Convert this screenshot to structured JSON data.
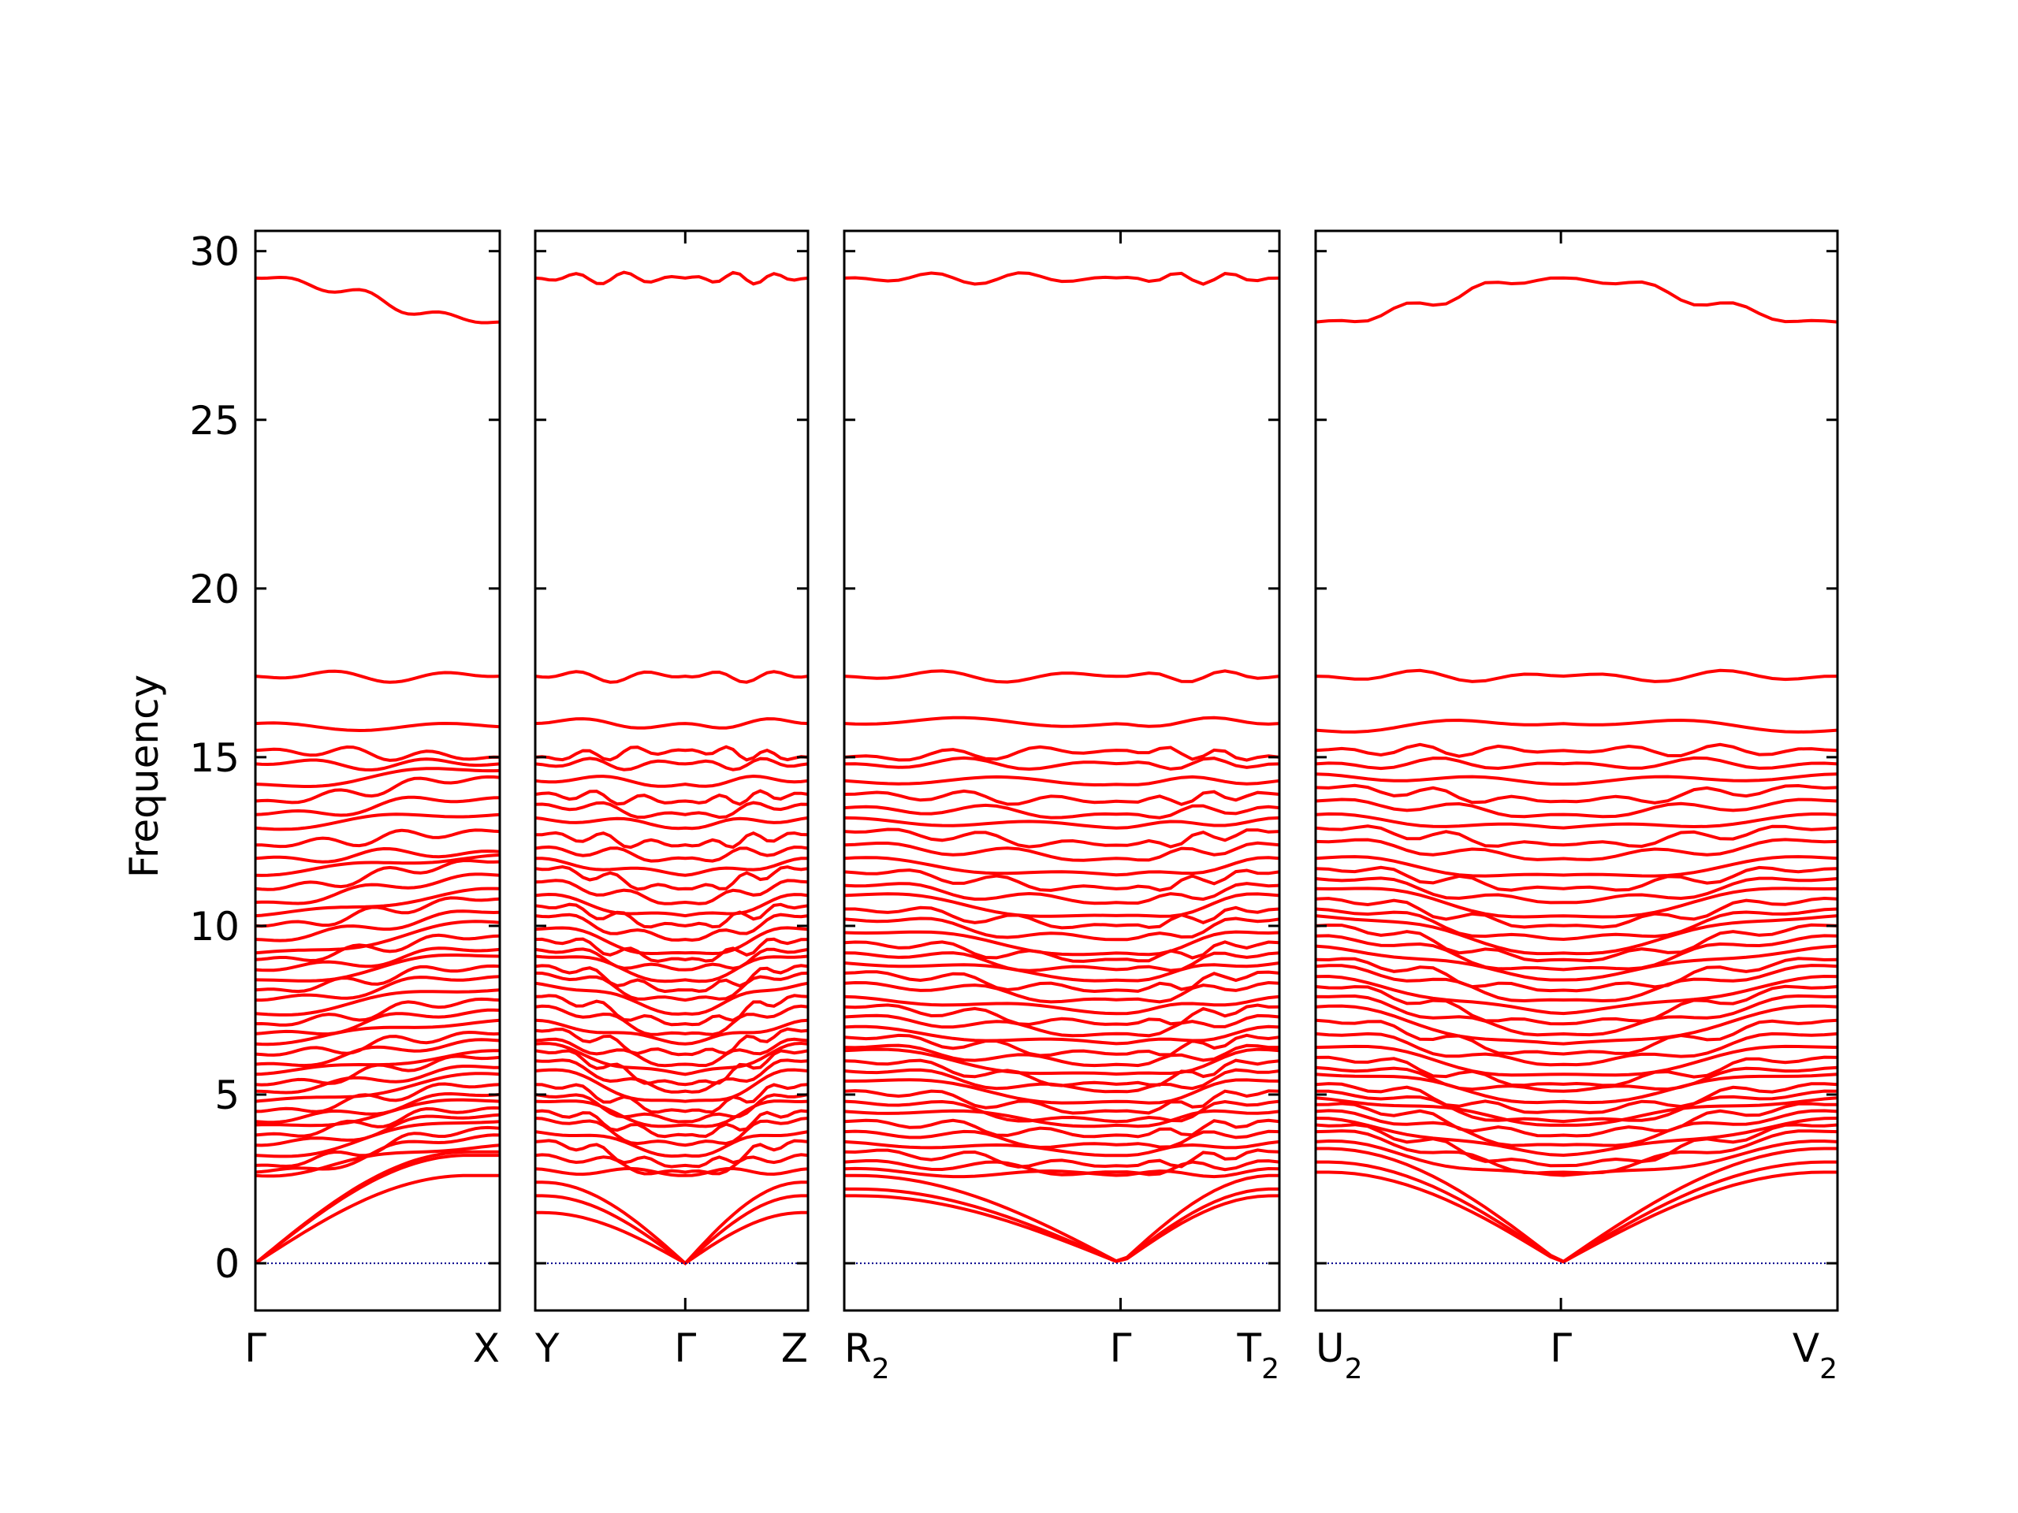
{
  "chart_data": {
    "type": "line",
    "ylabel": "Frequency",
    "ylim": [
      -1.4,
      30.6
    ],
    "yticks": [
      "0",
      "5",
      "10",
      "15",
      "20",
      "25",
      "30"
    ],
    "ytick_values": [
      0,
      5,
      10,
      15,
      20,
      25,
      30
    ],
    "grid": false,
    "legend": "none",
    "colors": {
      "bands": "#ff0000",
      "zero_line": "#00008b",
      "axes": "#000000"
    },
    "panels": [
      {
        "from": "Γ",
        "from_sub": "",
        "to": "X",
        "to_sub": "",
        "gamma_at": 0,
        "left_labels": [
          {
            "text": "Γ",
            "sub": ""
          }
        ],
        "mid_label": null,
        "right_labels": [
          {
            "text": "X",
            "sub": ""
          }
        ]
      },
      {
        "from": "Y",
        "from_sub": "",
        "to": "Z",
        "to_sub": "",
        "gamma_at": 0.55,
        "left_labels": [
          {
            "text": "Y",
            "sub": ""
          }
        ],
        "mid_label": {
          "text": "Γ",
          "sub": ""
        },
        "right_labels": [
          {
            "text": "Z",
            "sub": ""
          }
        ]
      },
      {
        "from": "R",
        "from_sub": "2",
        "to": "T",
        "to_sub": "2",
        "gamma_at": 0.635,
        "left_labels": [
          {
            "text": "R",
            "sub": "2"
          }
        ],
        "mid_label": {
          "text": "Γ",
          "sub": ""
        },
        "right_labels": [
          {
            "text": "T",
            "sub": "2"
          }
        ]
      },
      {
        "from": "U",
        "from_sub": "2",
        "to": "V",
        "to_sub": "2",
        "gamma_at": 0.47,
        "left_labels": [
          {
            "text": "U",
            "sub": "2"
          }
        ],
        "mid_label": {
          "text": "Γ",
          "sub": ""
        },
        "right_labels": [
          {
            "text": "V",
            "sub": "2"
          }
        ]
      }
    ],
    "gamma_bands": [
      0,
      0,
      0,
      2.6,
      2.7,
      2.9,
      3.2,
      3.5,
      3.8,
      4.1,
      4.2,
      4.5,
      4.8,
      5.1,
      5.3,
      5.6,
      5.9,
      6.2,
      6.5,
      6.8,
      7.1,
      7.4,
      7.8,
      8.1,
      8.4,
      8.7,
      9.0,
      9.2,
      9.6,
      10.0,
      10.3,
      10.7,
      11.1,
      11.5,
      12.0,
      12.4,
      12.9,
      13.3,
      13.7,
      14.2,
      14.8,
      15.2,
      16.0,
      17.4,
      29.2
    ],
    "panel_end_bands": [
      [
        2.6,
        3.2,
        3.3,
        3.5,
        3.8,
        4.0,
        4.2,
        4.4,
        4.6,
        4.8,
        5.0,
        5.3,
        5.6,
        5.8,
        6.1,
        6.3,
        6.6,
        6.8,
        7.2,
        7.5,
        7.8,
        8.1,
        8.5,
        8.8,
        9.1,
        9.3,
        9.7,
        10.1,
        10.4,
        10.8,
        11.1,
        11.5,
        11.9,
        12.1,
        12.2,
        12.8,
        13.3,
        13.8,
        14.4,
        14.6,
        14.8,
        15.0,
        15.9,
        17.4,
        27.9
      ],
      [
        1.5,
        2.0,
        2.4,
        2.8,
        3.2,
        3.6,
        3.9,
        4.3,
        4.5,
        4.8,
        5.0,
        5.3,
        5.7,
        6.0,
        6.3,
        6.5,
        6.6,
        6.9,
        7.2,
        7.6,
        7.9,
        8.3,
        8.6,
        8.8,
        9.1,
        9.3,
        9.6,
        9.9,
        10.3,
        10.6,
        10.9,
        11.3,
        11.7,
        12.0,
        12.3,
        12.7,
        13.2,
        13.6,
        13.9,
        14.3,
        14.8,
        15.0,
        16.0,
        17.4,
        29.2
      ],
      [
        2.0,
        2.2,
        2.6,
        2.8,
        3.0,
        3.3,
        3.6,
        3.9,
        4.2,
        4.5,
        4.8,
        5.1,
        5.4,
        5.7,
        6.0,
        6.3,
        6.4,
        6.7,
        7.0,
        7.3,
        7.6,
        7.9,
        8.3,
        8.6,
        8.9,
        9.2,
        9.5,
        9.8,
        10.2,
        10.5,
        10.9,
        11.2,
        11.6,
        12.0,
        12.4,
        12.8,
        13.2,
        13.5,
        13.9,
        14.3,
        14.8,
        15.0,
        16.0,
        17.4,
        29.2
      ],
      [
        2.7,
        3.0,
        3.4,
        3.6,
        3.9,
        4.1,
        4.3,
        4.5,
        4.7,
        4.9,
        5.1,
        5.3,
        5.6,
        5.8,
        6.1,
        6.4,
        6.8,
        7.2,
        7.6,
        7.9,
        8.2,
        8.5,
        8.8,
        9.0,
        9.4,
        9.7,
        10.0,
        10.3,
        10.5,
        10.8,
        11.1,
        11.4,
        11.7,
        12.0,
        12.5,
        12.9,
        13.3,
        13.7,
        14.1,
        14.5,
        14.8,
        15.2,
        15.8,
        17.4,
        27.9
      ]
    ]
  }
}
